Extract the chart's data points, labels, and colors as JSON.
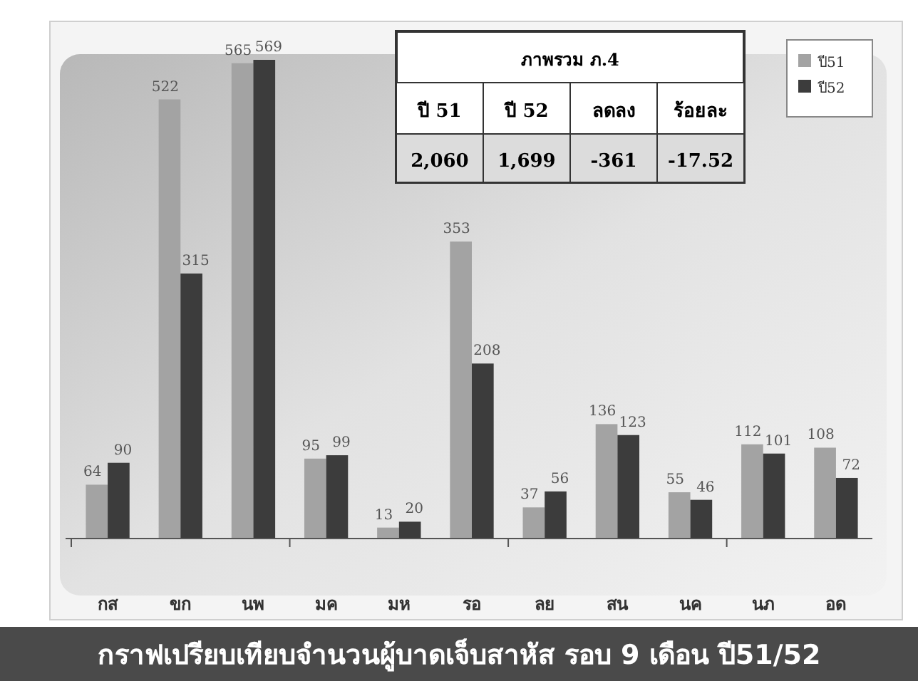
{
  "chart_data": {
    "type": "bar",
    "title": "กราฟเปรียบเทียบจำนวนผู้บาดเจ็บสาหัส รอบ 9 เดือน ปี51/52",
    "categories": [
      "กส",
      "ขก",
      "นพ",
      "มค",
      "มห",
      "รอ",
      "ลย",
      "สน",
      "นค",
      "นภ",
      "อด"
    ],
    "series": [
      {
        "name": "ปี51",
        "color": "#a3a3a3",
        "values": [
          64,
          522,
          565,
          95,
          13,
          353,
          37,
          136,
          55,
          112,
          108
        ]
      },
      {
        "name": "ปี52",
        "color": "#3c3c3c",
        "values": [
          90,
          315,
          569,
          99,
          20,
          208,
          56,
          123,
          46,
          101,
          72
        ]
      }
    ],
    "data_labels": true,
    "legend": "top right",
    "annotations": [
      "ภาพรวม ภ.4",
      "ปี 51",
      "ปี 52",
      "ลดลง",
      "ร้อยละ",
      "2,060",
      "1,699",
      "-361",
      "-17.52"
    ]
  }
}
